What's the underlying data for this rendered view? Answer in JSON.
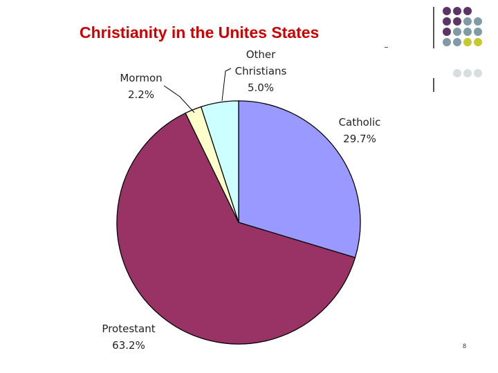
{
  "slide": {
    "title": "Christianity in the Unites States",
    "page_number": "8"
  },
  "colors": {
    "title": "#cc0000",
    "purple": "#5c3566",
    "grayblue": "#7f9ca6",
    "olive": "#c8c830",
    "lightgray": "#d8dde0"
  },
  "chart_data": {
    "type": "pie",
    "title": "",
    "slices": [
      {
        "label": "Catholic",
        "value": 29.7,
        "value_label": "29.7%",
        "color": "#9999ff"
      },
      {
        "label": "Protestant",
        "value": 63.2,
        "value_label": "63.2%",
        "color": "#993366"
      },
      {
        "label": "Mormon",
        "value": 2.2,
        "value_label": "2.2%",
        "color": "#ffffcc"
      },
      {
        "label": "Other Christians",
        "value": 5.0,
        "value_label": "5.0%",
        "color": "#ccffff"
      }
    ],
    "legend": "none"
  }
}
